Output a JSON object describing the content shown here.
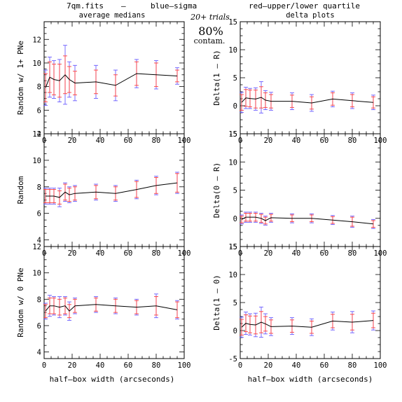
{
  "header": {
    "filename": "7qm.fits",
    "dash": "–",
    "blue_label": "blue–sigma",
    "red_label": "red–upper/lower quartile",
    "blue_color": "#6a5cff",
    "red_color": "#ff3b3b"
  },
  "annotation": {
    "trials": "20+ trials",
    "percent": "80%",
    "contam": "contam."
  },
  "column_titles": {
    "left": "average medians",
    "right": "delta plots"
  },
  "x_axis_label": "half–box width (arcseconds)",
  "chart_data": [
    {
      "type": "line",
      "panel": "left-top",
      "ylabel": "Random w/ 1+ PNe",
      "xlim": [
        0,
        100
      ],
      "ylim": [
        4,
        13.5
      ],
      "xticks": [
        0,
        20,
        40,
        60,
        80,
        100
      ],
      "yticks": [
        4,
        6,
        8,
        10,
        12
      ],
      "x": [
        1,
        4,
        7,
        11,
        15,
        18,
        22,
        37,
        51,
        66,
        80,
        95
      ],
      "y": [
        7.9,
        8.8,
        8.6,
        8.5,
        9.0,
        8.6,
        8.3,
        8.4,
        8.1,
        9.1,
        9.0,
        8.9
      ],
      "err_sigma": [
        1.5,
        1.7,
        1.6,
        1.8,
        2.5,
        1.5,
        1.5,
        1.4,
        1.3,
        1.2,
        1.2,
        0.7
      ],
      "err_quartile": [
        1.2,
        1.3,
        1.3,
        1.4,
        1.6,
        1.1,
        1.0,
        1.0,
        0.9,
        1.0,
        1.0,
        0.5
      ]
    },
    {
      "type": "line",
      "panel": "left-middle",
      "ylabel": "Random",
      "xlim": [
        0,
        100
      ],
      "ylim": [
        3.5,
        12
      ],
      "xticks": [
        0,
        20,
        40,
        60,
        80,
        100
      ],
      "yticks": [
        4,
        6,
        8,
        10,
        12
      ],
      "x": [
        1,
        4,
        7,
        11,
        15,
        18,
        22,
        37,
        51,
        66,
        80,
        95
      ],
      "y": [
        7.3,
        7.3,
        7.3,
        7.2,
        7.6,
        7.4,
        7.5,
        7.6,
        7.5,
        7.8,
        8.1,
        8.3
      ],
      "err_sigma": [
        0.6,
        0.6,
        0.6,
        0.7,
        0.7,
        0.6,
        0.6,
        0.6,
        0.6,
        0.7,
        0.7,
        0.8
      ],
      "err_quartile": [
        0.5,
        0.5,
        0.5,
        0.5,
        0.6,
        0.5,
        0.5,
        0.5,
        0.5,
        0.6,
        0.6,
        0.7
      ]
    },
    {
      "type": "line",
      "panel": "left-bottom",
      "ylabel": "Random w/ 0 PNe",
      "xlim": [
        0,
        100
      ],
      "ylim": [
        3.5,
        12
      ],
      "xticks": [
        0,
        20,
        40,
        60,
        80,
        100
      ],
      "yticks": [
        4,
        6,
        8,
        10,
        12
      ],
      "x": [
        1,
        4,
        7,
        11,
        15,
        18,
        22,
        37,
        51,
        66,
        80,
        95
      ],
      "y": [
        7.1,
        7.5,
        7.5,
        7.4,
        7.5,
        7.1,
        7.5,
        7.6,
        7.5,
        7.4,
        7.5,
        7.2
      ],
      "err_sigma": [
        0.6,
        0.8,
        0.7,
        0.8,
        0.7,
        0.7,
        0.6,
        0.6,
        0.6,
        0.6,
        0.9,
        0.7
      ],
      "err_quartile": [
        0.5,
        0.6,
        0.6,
        0.6,
        0.6,
        0.5,
        0.5,
        0.5,
        0.5,
        0.5,
        0.7,
        0.6
      ]
    },
    {
      "type": "line",
      "panel": "right-top",
      "ylabel": "Delta(1 – R)",
      "xlim": [
        0,
        100
      ],
      "ylim": [
        -5,
        15
      ],
      "xticks": [
        0,
        20,
        40,
        60,
        80,
        100
      ],
      "yticks": [
        -5,
        0,
        5,
        10,
        15
      ],
      "x": [
        1,
        4,
        7,
        11,
        15,
        18,
        22,
        37,
        51,
        66,
        80,
        95
      ],
      "y": [
        0.6,
        1.4,
        1.3,
        1.2,
        1.5,
        1.0,
        0.8,
        0.8,
        0.5,
        1.2,
        0.9,
        0.6
      ],
      "err_sigma": [
        1.8,
        1.9,
        1.8,
        2.0,
        2.8,
        1.7,
        1.6,
        1.5,
        1.5,
        1.4,
        1.4,
        1.3
      ],
      "err_quartile": [
        1.4,
        1.5,
        1.5,
        1.6,
        1.9,
        1.3,
        1.2,
        1.1,
        1.1,
        1.1,
        1.1,
        1.0
      ]
    },
    {
      "type": "line",
      "panel": "right-middle",
      "ylabel": "Delta(0 – R)",
      "xlim": [
        0,
        100
      ],
      "ylim": [
        -5,
        15
      ],
      "xticks": [
        0,
        20,
        40,
        60,
        80,
        100
      ],
      "yticks": [
        -5,
        0,
        5,
        10,
        15
      ],
      "x": [
        1,
        4,
        7,
        11,
        15,
        18,
        22,
        37,
        51,
        66,
        80,
        95
      ],
      "y": [
        -0.2,
        0.2,
        0.2,
        0.2,
        0.0,
        -0.4,
        0.1,
        0.0,
        0.0,
        -0.3,
        -0.6,
        -1.0
      ],
      "err_sigma": [
        0.8,
        0.9,
        0.9,
        0.9,
        0.9,
        0.8,
        0.8,
        0.8,
        0.8,
        0.8,
        1.0,
        0.8
      ],
      "err_quartile": [
        0.6,
        0.7,
        0.7,
        0.7,
        0.7,
        0.6,
        0.6,
        0.6,
        0.6,
        0.6,
        0.8,
        0.6
      ]
    },
    {
      "type": "line",
      "panel": "right-bottom",
      "ylabel": "Delta(1 – 0)",
      "xlim": [
        0,
        100
      ],
      "ylim": [
        -5,
        15
      ],
      "xticks": [
        0,
        20,
        40,
        60,
        80,
        100
      ],
      "yticks": [
        -5,
        0,
        5,
        10,
        15
      ],
      "x": [
        1,
        4,
        7,
        11,
        15,
        18,
        22,
        37,
        51,
        66,
        80,
        95
      ],
      "y": [
        0.6,
        1.3,
        1.1,
        1.0,
        1.5,
        1.2,
        0.7,
        0.8,
        0.6,
        1.7,
        1.5,
        1.8
      ],
      "err_sigma": [
        1.8,
        2.0,
        1.9,
        2.1,
        2.7,
        1.8,
        1.6,
        1.5,
        1.5,
        1.6,
        1.9,
        1.7
      ],
      "err_quartile": [
        1.4,
        1.5,
        1.5,
        1.6,
        1.9,
        1.3,
        1.2,
        1.1,
        1.1,
        1.2,
        1.4,
        1.3
      ]
    }
  ]
}
